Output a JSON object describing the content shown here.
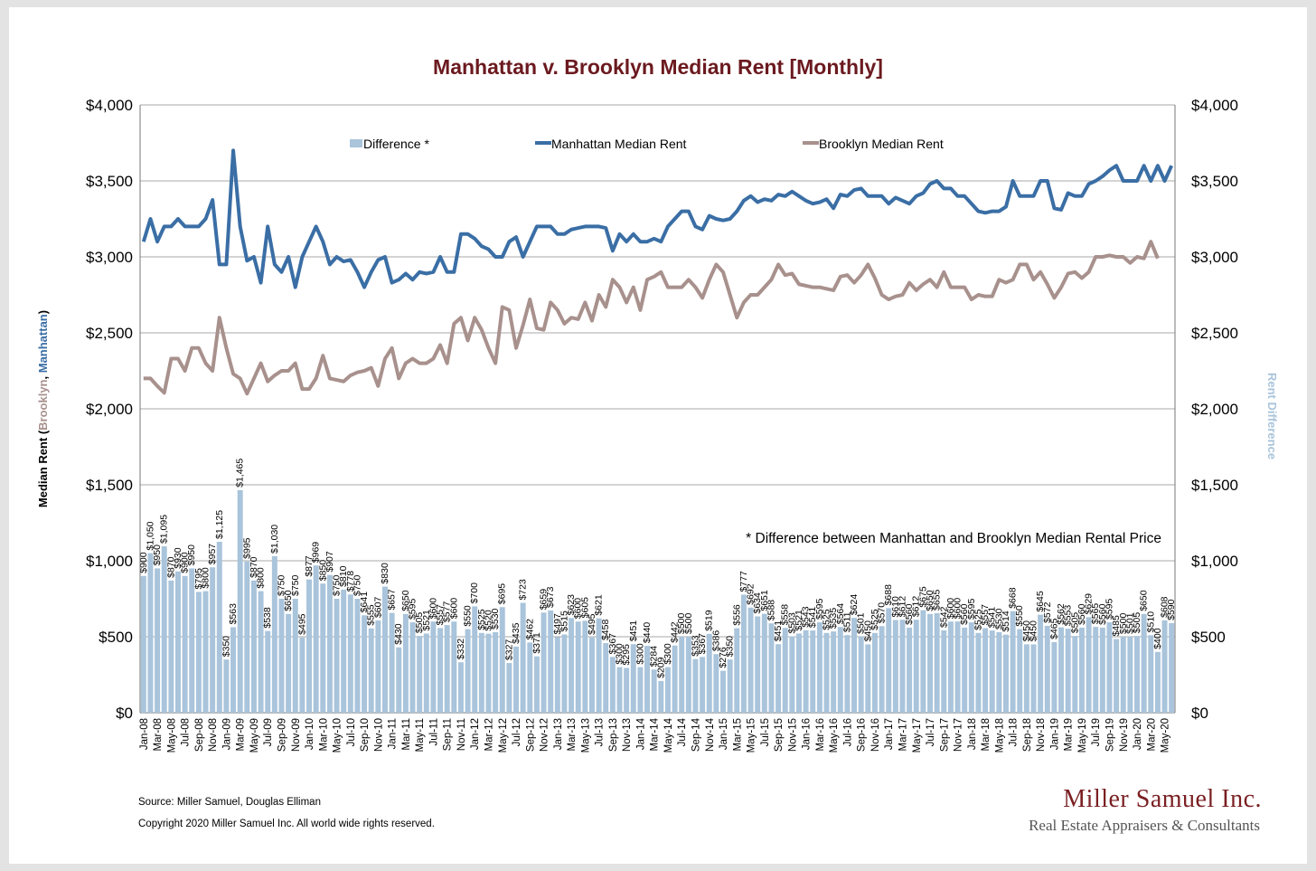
{
  "chart_data": {
    "type": "bar+line",
    "title": "Manhattan v. Brooklyn Median Rent [Monthly]",
    "ylabel_left": {
      "prefix": "Median Rent (",
      "brooklyn": "Brooklyn",
      "sep": ", ",
      "manhattan": "Manhattan",
      "suffix": ")"
    },
    "ylabel_right": "Rent Difference",
    "ylim": [
      0,
      4000
    ],
    "y_ticks": [
      0,
      500,
      1000,
      1500,
      2000,
      2500,
      3000,
      3500,
      4000
    ],
    "y_tick_labels": [
      "$0",
      "$500",
      "$1,000",
      "$1,500",
      "$2,000",
      "$2,500",
      "$3,000",
      "$3,500",
      "$4,000"
    ],
    "start": {
      "year": 2008,
      "month": 1
    },
    "month_abbr": [
      "Jan",
      "Feb",
      "Mar",
      "Apr",
      "May",
      "Jun",
      "Jul",
      "Aug",
      "Sep",
      "Oct",
      "Nov",
      "Dec"
    ],
    "x_label_every": 2,
    "grid": true,
    "colors": {
      "difference": "#a9c4db",
      "manhattan": "#3a6ea5",
      "brooklyn": "#a8918d",
      "title": "#6b1a1f",
      "brand": "#7a1f22",
      "grid": "#a8a8a8"
    },
    "series": [
      {
        "name": "Difference *",
        "kind": "bar",
        "values": [
          900,
          1050,
          950,
          1095,
          870,
          930,
          900,
          950,
          795,
          800,
          957,
          1125,
          350,
          563,
          1465,
          995,
          870,
          800,
          538,
          1030,
          750,
          650,
          750,
          495,
          877,
          969,
          850,
          907,
          750,
          810,
          778,
          750,
          641,
          555,
          607,
          830,
          657,
          430,
          650,
          595,
          505,
          521,
          600,
          557,
          577,
          600,
          332,
          550,
          700,
          525,
          520,
          530,
          695,
          327,
          435,
          723,
          462,
          371,
          659,
          673,
          497,
          515,
          623,
          600,
          605,
          495,
          621,
          458,
          367,
          300,
          295,
          451,
          300,
          440,
          284,
          209,
          300,
          442,
          500,
          500,
          353,
          367,
          519,
          386,
          276,
          350,
          556,
          777,
          692,
          634,
          651,
          588,
          451,
          558,
          503,
          521,
          543,
          541,
          595,
          525,
          535,
          564,
          511,
          624,
          501,
          450,
          525,
          570,
          688,
          610,
          612,
          560,
          612,
          675,
          650,
          655,
          542,
          600,
          600,
          560,
          595,
          525,
          557,
          541,
          530,
          514,
          668,
          550,
          450,
          450,
          645,
          572,
          465,
          562,
          553,
          505,
          560,
          629,
          565,
          560,
          595,
          485,
          500,
          501,
          505,
          650,
          510,
          400,
          608,
          590
        ]
      },
      {
        "name": "Manhattan Median Rent",
        "kind": "line",
        "values": [
          3100,
          3250,
          3100,
          3200,
          3200,
          3250,
          3200,
          3200,
          3200,
          3250,
          3375,
          2950,
          2950,
          3700,
          3200,
          2975,
          3000,
          2830,
          3200,
          2950,
          2900,
          3000,
          2800,
          3000,
          3100,
          3200,
          3100,
          2950,
          3000,
          2970,
          2980,
          2900,
          2800,
          2900,
          2980,
          3000,
          2830,
          2850,
          2890,
          2850,
          2900,
          2890,
          2900,
          3000,
          2900,
          2900,
          3150,
          3150,
          3120,
          3070,
          3050,
          3000,
          3000,
          3100,
          3130,
          3000,
          3100,
          3200,
          3200,
          3200,
          3150,
          3150,
          3180,
          3190,
          3200,
          3200,
          3200,
          3190,
          3040,
          3150,
          3100,
          3150,
          3100,
          3100,
          3120,
          3100,
          3200,
          3250,
          3300,
          3300,
          3200,
          3180,
          3270,
          3250,
          3240,
          3250,
          3300,
          3370,
          3400,
          3360,
          3380,
          3370,
          3410,
          3400,
          3430,
          3400,
          3370,
          3350,
          3360,
          3380,
          3320,
          3410,
          3400,
          3440,
          3450,
          3400,
          3400,
          3400,
          3350,
          3390,
          3370,
          3350,
          3400,
          3420,
          3480,
          3500,
          3450,
          3450,
          3400,
          3400,
          3350,
          3300,
          3290,
          3300,
          3300,
          3330,
          3500,
          3400,
          3400,
          3400,
          3500,
          3500,
          3320,
          3310,
          3420,
          3400,
          3400,
          3480,
          3500,
          3530,
          3570,
          3600,
          3500,
          3500,
          3500,
          3600,
          3500,
          3600,
          3500,
          3600
        ]
      },
      {
        "name": "Brooklyn Median Rent",
        "kind": "line",
        "values": [
          2200,
          2200,
          2150,
          2105,
          2330,
          2330,
          2250,
          2400,
          2400,
          2300,
          2250,
          2600,
          2400,
          2230,
          2200,
          2100,
          2200,
          2300,
          2180,
          2220,
          2250,
          2250,
          2300,
          2130,
          2130,
          2200,
          2350,
          2200,
          2190,
          2180,
          2220,
          2240,
          2250,
          2270,
          2150,
          2330,
          2400,
          2200,
          2300,
          2330,
          2300,
          2300,
          2330,
          2420,
          2300,
          2560,
          2600,
          2450,
          2600,
          2520,
          2400,
          2300,
          2670,
          2650,
          2400,
          2550,
          2720,
          2530,
          2520,
          2700,
          2650,
          2560,
          2600,
          2590,
          2700,
          2580,
          2750,
          2670,
          2850,
          2800,
          2700,
          2800,
          2650,
          2850,
          2870,
          2900,
          2800,
          2800,
          2800,
          2850,
          2800,
          2730,
          2850,
          2950,
          2900,
          2750,
          2600,
          2700,
          2750,
          2750,
          2800,
          2850,
          2950,
          2880,
          2890,
          2820,
          2810,
          2800,
          2800,
          2790,
          2780,
          2870,
          2880,
          2830,
          2880,
          2950,
          2860,
          2750,
          2720,
          2740,
          2750,
          2830,
          2780,
          2820,
          2850,
          2800,
          2900,
          2800,
          2800,
          2800,
          2720,
          2750,
          2740,
          2740,
          2850,
          2830,
          2850,
          2950,
          2950,
          2850,
          2900,
          2820,
          2730,
          2800,
          2890,
          2900,
          2860,
          2900,
          3000,
          3000,
          3010,
          3000,
          3000,
          2960,
          3000,
          2990,
          3100,
          2990
        ]
      }
    ],
    "legend": [
      "Difference *",
      "Manhattan Median Rent",
      "Brooklyn Median Rent"
    ],
    "annotation": "* Difference between Manhattan and Brooklyn Median Rental Price"
  },
  "footer": {
    "source": "Source: Miller Samuel, Douglas Elliman",
    "copyright": "Copyright 2020 Miller Samuel Inc.  All world wide rights reserved."
  },
  "brand": {
    "name": "Miller Samuel Inc.",
    "tagline": "Real Estate Appraisers & Consultants"
  }
}
